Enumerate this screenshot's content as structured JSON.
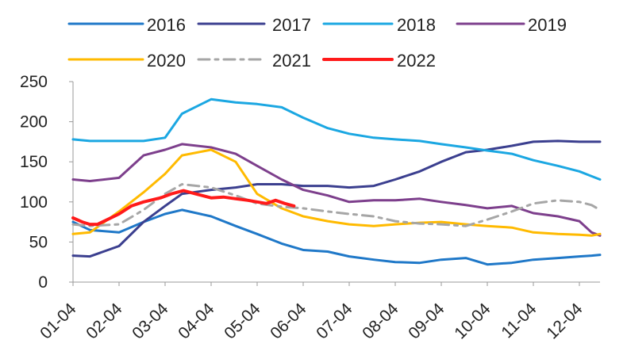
{
  "chart_data": {
    "type": "line",
    "title": "",
    "xlabel": "",
    "ylabel": "",
    "ylim": [
      0,
      250
    ],
    "yticks": [
      0,
      50,
      100,
      150,
      200,
      250
    ],
    "grid": false,
    "legend_position": "top",
    "x_labels": [
      "01-04",
      "02-04",
      "03-04",
      "04-04",
      "05-04",
      "06-04",
      "07-04",
      "08-04",
      "09-04",
      "10-04",
      "11-04",
      "12-04"
    ],
    "series": [
      {
        "name": "2016",
        "color": "#1f78c8",
        "stroke_style": "solid",
        "x": [
          "01-04",
          "01-15",
          "02-04",
          "02-20",
          "03-04",
          "03-15",
          "04-04",
          "04-20",
          "05-04",
          "05-20",
          "06-04",
          "06-20",
          "07-04",
          "07-20",
          "08-04",
          "08-20",
          "09-04",
          "09-20",
          "10-04",
          "10-20",
          "11-04",
          "11-20",
          "12-04",
          "12-20",
          "12-31"
        ],
        "values": [
          75,
          65,
          62,
          75,
          85,
          90,
          82,
          70,
          60,
          48,
          40,
          38,
          32,
          28,
          25,
          24,
          28,
          30,
          22,
          24,
          28,
          30,
          32,
          33,
          34
        ]
      },
      {
        "name": "2017",
        "color": "#3b3f8f",
        "stroke_style": "solid",
        "x": [
          "01-04",
          "01-15",
          "02-04",
          "02-20",
          "03-04",
          "03-15",
          "04-04",
          "04-20",
          "05-04",
          "05-20",
          "06-04",
          "06-20",
          "07-04",
          "07-20",
          "08-04",
          "08-20",
          "09-04",
          "09-20",
          "10-04",
          "10-20",
          "11-04",
          "11-20",
          "12-04",
          "12-20",
          "12-31"
        ],
        "values": [
          33,
          32,
          45,
          75,
          95,
          110,
          115,
          118,
          122,
          122,
          120,
          120,
          118,
          120,
          128,
          138,
          150,
          162,
          165,
          170,
          175,
          176,
          175,
          175,
          175
        ]
      },
      {
        "name": "2018",
        "color": "#1ba7e2",
        "stroke_style": "solid",
        "x": [
          "01-04",
          "01-15",
          "02-04",
          "02-20",
          "03-04",
          "03-15",
          "04-04",
          "04-20",
          "05-04",
          "05-20",
          "06-04",
          "06-20",
          "07-04",
          "07-20",
          "08-04",
          "08-20",
          "09-04",
          "09-20",
          "10-04",
          "10-20",
          "11-04",
          "11-20",
          "12-04",
          "12-20",
          "12-31"
        ],
        "values": [
          178,
          176,
          176,
          176,
          180,
          210,
          228,
          224,
          222,
          218,
          205,
          192,
          185,
          180,
          178,
          176,
          172,
          168,
          164,
          160,
          152,
          145,
          138,
          132,
          128
        ]
      },
      {
        "name": "2019",
        "color": "#7d3f8c",
        "stroke_style": "solid",
        "x": [
          "01-04",
          "01-15",
          "02-04",
          "02-20",
          "03-04",
          "03-15",
          "04-04",
          "04-20",
          "05-04",
          "05-20",
          "06-04",
          "06-20",
          "07-04",
          "07-20",
          "08-04",
          "08-20",
          "09-04",
          "09-20",
          "10-04",
          "10-20",
          "11-04",
          "11-20",
          "12-04",
          "12-20",
          "12-31"
        ],
        "values": [
          128,
          126,
          130,
          158,
          165,
          172,
          168,
          160,
          145,
          128,
          115,
          108,
          100,
          102,
          102,
          104,
          100,
          96,
          92,
          95,
          86,
          82,
          76,
          62,
          58
        ]
      },
      {
        "name": "2020",
        "color": "#ffba00",
        "stroke_style": "solid",
        "x": [
          "01-04",
          "01-15",
          "02-04",
          "02-20",
          "03-04",
          "03-15",
          "04-04",
          "04-20",
          "05-04",
          "05-20",
          "06-04",
          "06-20",
          "07-04",
          "07-20",
          "08-04",
          "08-20",
          "09-04",
          "09-20",
          "10-04",
          "10-20",
          "11-04",
          "11-20",
          "12-04",
          "12-20",
          "12-31"
        ],
        "values": [
          60,
          62,
          88,
          112,
          135,
          158,
          165,
          150,
          110,
          92,
          82,
          76,
          72,
          70,
          72,
          74,
          75,
          72,
          70,
          68,
          62,
          60,
          59,
          58,
          60
        ]
      },
      {
        "name": "2021",
        "color": "#a6a6a6",
        "stroke_style": "dash-dot",
        "x": [
          "01-04",
          "01-15",
          "02-04",
          "02-20",
          "03-04",
          "03-15",
          "04-04",
          "04-20",
          "05-04",
          "05-20",
          "06-04",
          "06-20",
          "07-04",
          "07-20",
          "08-04",
          "08-20",
          "09-04",
          "09-20",
          "10-04",
          "10-20",
          "11-04",
          "11-20",
          "12-04",
          "12-20",
          "12-31"
        ],
        "values": [
          72,
          70,
          72,
          90,
          110,
          122,
          118,
          108,
          98,
          94,
          92,
          88,
          85,
          82,
          76,
          73,
          72,
          70,
          78,
          88,
          98,
          102,
          100,
          96,
          90
        ]
      },
      {
        "name": "2022",
        "color": "#ff1a1a",
        "stroke_style": "solid",
        "x": [
          "01-04",
          "01-10",
          "01-15",
          "01-20",
          "02-04",
          "02-12",
          "02-20",
          "03-01",
          "03-08",
          "03-16",
          "03-24",
          "04-04",
          "04-12",
          "04-20",
          "04-28",
          "05-04",
          "05-10",
          "05-16",
          "05-22",
          "05-28"
        ],
        "values": [
          80,
          75,
          72,
          72,
          85,
          95,
          100,
          105,
          110,
          114,
          110,
          105,
          106,
          104,
          102,
          100,
          98,
          102,
          98,
          95
        ]
      }
    ]
  }
}
